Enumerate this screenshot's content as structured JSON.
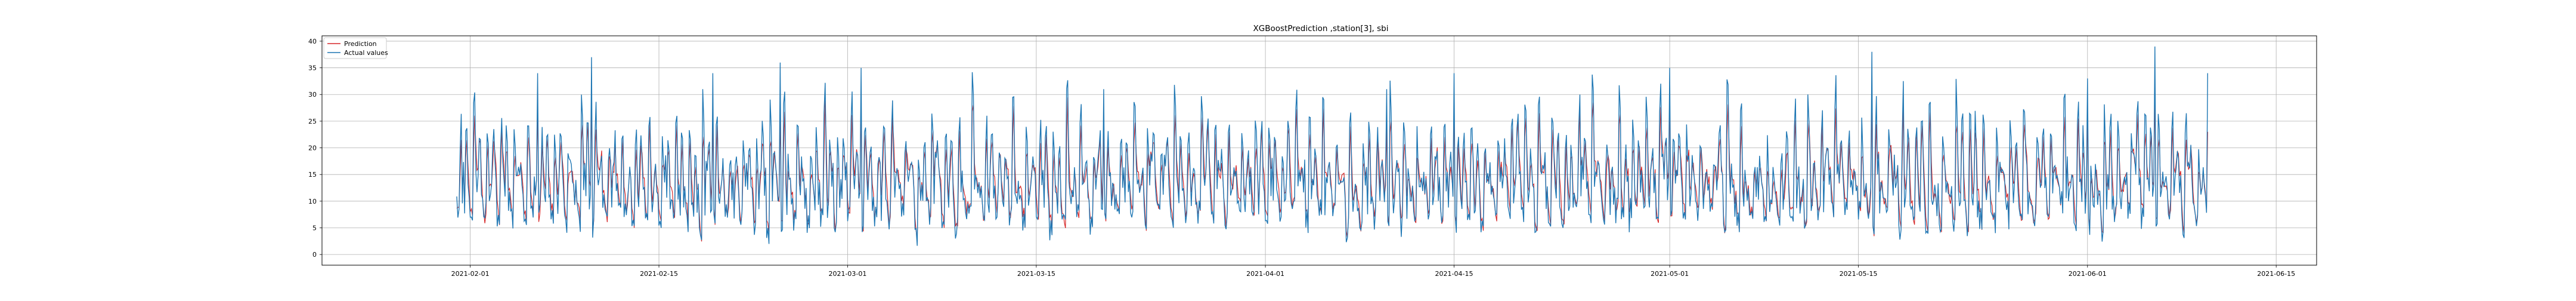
{
  "chart_data": {
    "type": "line",
    "title": "XGBoostPrediction ,station[3], sbi",
    "xlabel": "",
    "ylabel": "",
    "x_range": [
      "2021-01-21",
      "2021-06-18"
    ],
    "data_range": [
      "2021-01-31",
      "2021-06-10"
    ],
    "xticks": [
      "2021-02-01",
      "2021-02-15",
      "2021-03-01",
      "2021-03-15",
      "2021-04-01",
      "2021-04-15",
      "2021-05-01",
      "2021-05-15",
      "2021-06-01",
      "2021-06-15"
    ],
    "ylim": [
      -2,
      41
    ],
    "yticks": [
      0,
      5,
      10,
      15,
      20,
      25,
      30,
      35,
      40
    ],
    "grid": true,
    "legend_position": "top-left",
    "series": [
      {
        "name": "Prediction",
        "color": "#d62728"
      },
      {
        "name": "Actual values",
        "color": "#1f77b4"
      }
    ],
    "sample_points": [
      {
        "x": "2021-02-01",
        "actual": 7,
        "prediction": 8
      },
      {
        "x": "2021-02-06",
        "actual": 34,
        "prediction": 28
      },
      {
        "x": "2021-02-10",
        "actual": 37,
        "prediction": 29
      },
      {
        "x": "2021-02-19",
        "actual": 34,
        "prediction": 25
      },
      {
        "x": "2021-02-24",
        "actual": 36,
        "prediction": 27
      },
      {
        "x": "2021-03-02",
        "actual": 35,
        "prediction": 29
      },
      {
        "x": "2021-03-20",
        "actual": 31,
        "prediction": 23
      },
      {
        "x": "2021-04-10",
        "actual": 31,
        "prediction": 24
      },
      {
        "x": "2021-04-15",
        "actual": 34,
        "prediction": 28
      },
      {
        "x": "2021-05-01",
        "actual": 35,
        "prediction": 29
      },
      {
        "x": "2021-05-16",
        "actual": 38,
        "prediction": 30
      },
      {
        "x": "2021-06-01",
        "actual": 33,
        "prediction": 27
      },
      {
        "x": "2021-06-06",
        "actual": 39,
        "prediction": 31
      },
      {
        "x": "2021-06-10",
        "actual": 34,
        "prediction": 23
      }
    ]
  }
}
